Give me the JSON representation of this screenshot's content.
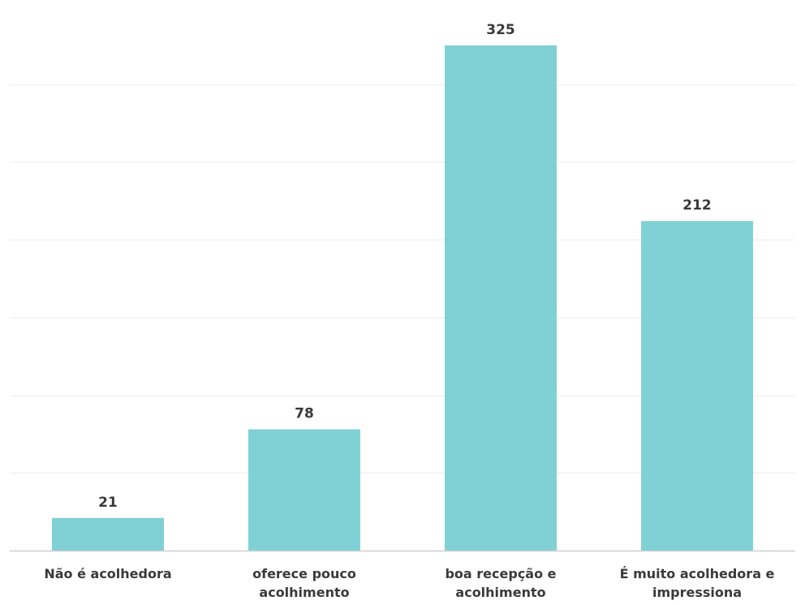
{
  "chart_data": {
    "type": "bar",
    "title": "",
    "xlabel": "",
    "ylabel": "",
    "categories": [
      "Não é acolhedora",
      "oferece pouco acolhimento",
      "boa recepção e acolhimento",
      "É muito acolhedora e impressiona"
    ],
    "category_lines": [
      [
        "Não é acolhedora"
      ],
      [
        "oferece pouco",
        "acolhimento"
      ],
      [
        "boa recepção e",
        "acolhimento"
      ],
      [
        "É muito acolhedora e",
        "impressiona"
      ]
    ],
    "values": [
      21,
      78,
      325,
      212
    ],
    "ylim": [
      0,
      350
    ],
    "grid": true,
    "show_y_axis_labels": false,
    "colors": {
      "bar": "#80d1d6",
      "grid": "#ececec",
      "axis": "#cfcfcf",
      "text": "#3a3a3a"
    }
  }
}
